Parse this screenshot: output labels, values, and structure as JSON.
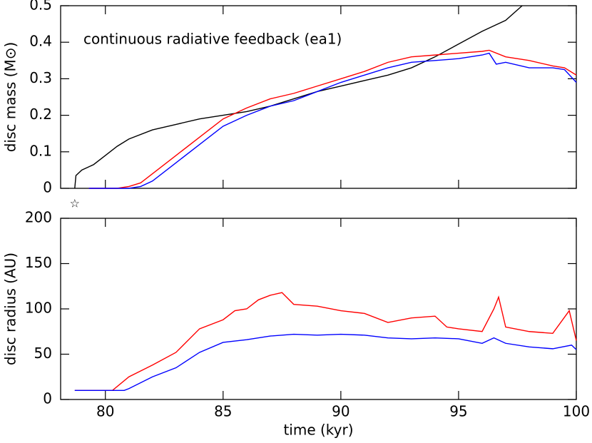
{
  "chart_data": [
    {
      "type": "line",
      "annotation": "continuous radiative feedback   (ea1)",
      "ylabel": "disc mass  (M⊙)",
      "xlim": [
        78.1,
        100
      ],
      "ylim": [
        0,
        0.5
      ],
      "xticks": [
        80,
        85,
        90,
        95,
        100
      ],
      "show_xtick_labels": false,
      "yticks": [
        0,
        0.1,
        0.2,
        0.3,
        0.4,
        0.5
      ],
      "marker": {
        "x": 78.7,
        "label": "☆"
      },
      "series": [
        {
          "color": "#000000",
          "x": [
            78.7,
            78.75,
            79,
            79.5,
            80,
            80.5,
            81,
            82,
            83,
            84,
            85,
            86,
            87,
            88,
            89,
            90,
            91,
            92,
            93,
            94,
            95,
            96,
            97,
            97.7
          ],
          "values": [
            0,
            0.035,
            0.05,
            0.065,
            0.09,
            0.115,
            0.135,
            0.16,
            0.175,
            0.19,
            0.2,
            0.21,
            0.225,
            0.245,
            0.265,
            0.28,
            0.295,
            0.31,
            0.33,
            0.36,
            0.395,
            0.43,
            0.46,
            0.5
          ]
        },
        {
          "color": "#ff0000",
          "x": [
            79.3,
            80.5,
            81,
            81.5,
            82,
            83,
            84,
            85,
            86,
            87,
            88,
            89,
            90,
            91,
            92,
            93,
            94,
            95,
            96,
            96.3,
            97,
            98,
            99,
            99.5,
            100
          ],
          "values": [
            0,
            0,
            0.005,
            0.015,
            0.04,
            0.09,
            0.14,
            0.19,
            0.22,
            0.245,
            0.26,
            0.28,
            0.3,
            0.32,
            0.345,
            0.36,
            0.365,
            0.37,
            0.375,
            0.378,
            0.36,
            0.35,
            0.335,
            0.33,
            0.31
          ]
        },
        {
          "color": "#0000ff",
          "x": [
            79.3,
            81,
            81.5,
            82,
            83,
            84,
            85,
            86,
            87,
            88,
            89,
            90,
            91,
            92,
            93,
            94,
            95,
            96,
            96.3,
            96.6,
            97,
            98,
            99,
            99.5,
            100
          ],
          "values": [
            0,
            0,
            0.005,
            0.02,
            0.07,
            0.12,
            0.17,
            0.2,
            0.225,
            0.24,
            0.265,
            0.29,
            0.31,
            0.33,
            0.345,
            0.35,
            0.355,
            0.365,
            0.37,
            0.34,
            0.345,
            0.33,
            0.33,
            0.325,
            0.29
          ]
        }
      ]
    },
    {
      "type": "line",
      "xlabel": "time (kyr)",
      "ylabel": "disc radius  (AU)",
      "xlim": [
        78.1,
        100
      ],
      "ylim": [
        0,
        200
      ],
      "xticks": [
        80,
        85,
        90,
        95,
        100
      ],
      "show_xtick_labels": true,
      "yticks": [
        0,
        50,
        100,
        150,
        200
      ],
      "series": [
        {
          "color": "#ff0000",
          "x": [
            78.7,
            80.3,
            81,
            82,
            83,
            84,
            85,
            85.5,
            86,
            86.5,
            87,
            87.5,
            88,
            89,
            90,
            91,
            92,
            93,
            94,
            94.5,
            95,
            96,
            96.5,
            96.7,
            97,
            98,
            99,
            99.7,
            100
          ],
          "values": [
            10,
            10,
            25,
            38,
            52,
            78,
            88,
            98,
            100,
            110,
            115,
            118,
            105,
            103,
            98,
            95,
            85,
            90,
            92,
            80,
            78,
            75,
            100,
            113,
            80,
            75,
            73,
            98,
            65
          ]
        },
        {
          "color": "#0000ff",
          "x": [
            78.7,
            80.8,
            81,
            82,
            83,
            84,
            85,
            86,
            87,
            88,
            89,
            90,
            91,
            92,
            93,
            94,
            95,
            96,
            96.5,
            97,
            98,
            99,
            99.8,
            100
          ],
          "values": [
            10,
            10,
            12,
            25,
            35,
            52,
            63,
            66,
            70,
            72,
            71,
            72,
            71,
            68,
            67,
            68,
            67,
            62,
            68,
            62,
            58,
            56,
            60,
            55
          ]
        }
      ]
    }
  ]
}
